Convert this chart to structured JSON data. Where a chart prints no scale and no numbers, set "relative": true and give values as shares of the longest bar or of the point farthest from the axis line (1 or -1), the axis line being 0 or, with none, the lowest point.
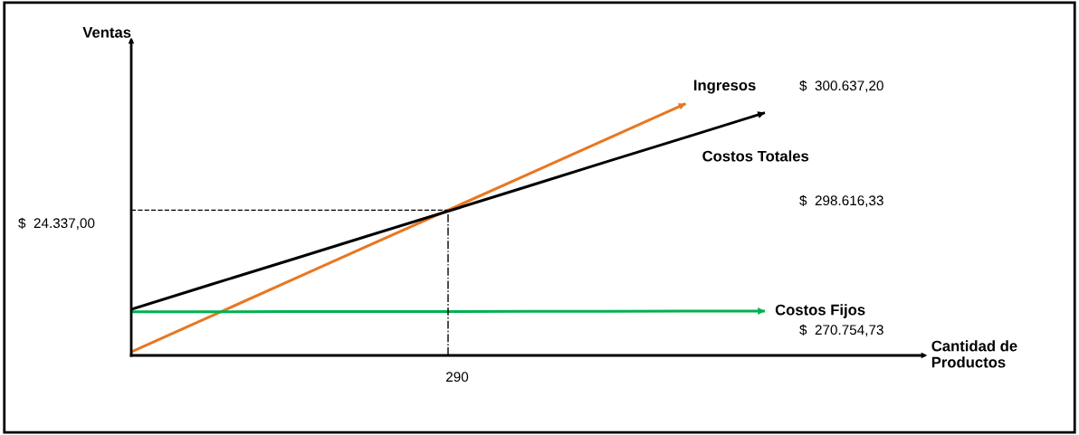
{
  "chart_data": {
    "type": "line",
    "relative": true,
    "xlabel": "Cantidad de\nProductos",
    "ylabel": "Ventas",
    "categories": [
      null,
      null,
      null,
      null,
      null,
      null,
      null,
      null,
      null,
      null,
      null
    ],
    "series": [
      {
        "name": "Ingresos",
        "color": "#e87722",
        "values": [
          0.014,
          0.155,
          0.296,
          0.437,
          0.577,
          0.718,
          0.859,
          1,
          null,
          null,
          null
        ]
      },
      {
        "name": "Costos Totales",
        "color": "#000000",
        "values": [
          0.183,
          0.281,
          0.378,
          0.476,
          0.573,
          0.671,
          0.769,
          0.866,
          0.964,
          null,
          null
        ]
      },
      {
        "name": "Costos Fijos",
        "color": "#00b050",
        "values": [
          0.173,
          0.173,
          0.174,
          0.174,
          0.174,
          0.175,
          0.175,
          0.176,
          0.176,
          null,
          null
        ]
      }
    ],
    "ref_lines": [
      {
        "axis": "y",
        "value": 0.577,
        "line_style": "dashed",
        "color": "#000000"
      }
    ],
    "annotations": [
      "$  300.637,20",
      "$  298.616,33",
      "$  24.337,00",
      "$  270.754,73",
      "290"
    ],
    "legend": false,
    "marker": "none",
    "line_style": "solid"
  }
}
